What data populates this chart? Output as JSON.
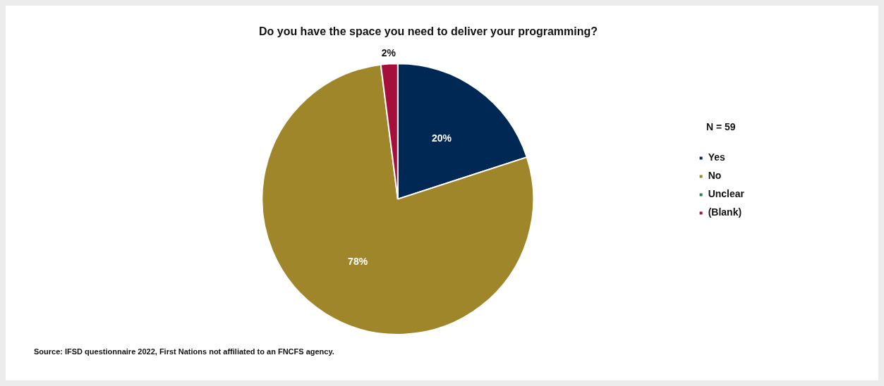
{
  "chart_data": {
    "type": "pie",
    "title": "Do you have the space you need to deliver your programming?",
    "categories": [
      "Yes",
      "No",
      "Unclear",
      "(Blank)"
    ],
    "values": [
      20,
      78,
      0,
      2
    ],
    "colors": [
      "#002855",
      "#a0862a",
      "#2e7d4f",
      "#a50f3c"
    ],
    "value_labels": [
      "20%",
      "78%",
      null,
      "2%"
    ],
    "legend": "right",
    "legend_title": "N = 59",
    "annotations": [
      "Source: IFSD questionnaire 2022, First Nations not affiliated to an FNCFS agency."
    ]
  }
}
